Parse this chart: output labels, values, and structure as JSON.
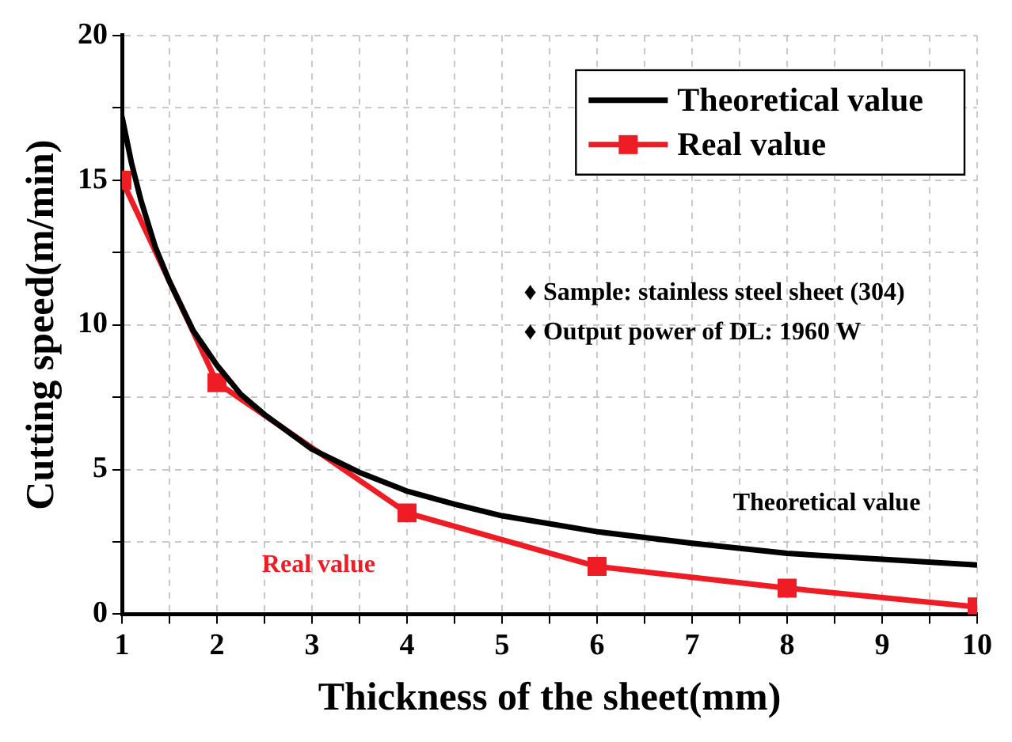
{
  "chart_data": {
    "type": "line",
    "xlabel": "Thickness of the sheet(mm)",
    "ylabel": "Cutting speed(m/min)",
    "xlim": [
      1,
      10
    ],
    "ylim": [
      0,
      20
    ],
    "xticks": [
      1,
      {
        "value": 1.5,
        "label": null
      },
      2,
      {
        "value": 2.5,
        "label": null
      },
      3,
      {
        "value": 3.5,
        "label": null
      },
      4,
      {
        "value": 4.5,
        "label": null
      },
      5,
      {
        "value": 5.5,
        "label": null
      },
      6,
      {
        "value": 6.5,
        "label": null
      },
      7,
      {
        "value": 7.5,
        "label": null
      },
      8,
      {
        "value": 8.5,
        "label": null
      },
      9,
      {
        "value": 9.5,
        "label": null
      },
      10
    ],
    "yticks": [
      0,
      {
        "value": 2.5,
        "label": null
      },
      5,
      {
        "value": 7.5,
        "label": null
      },
      10,
      {
        "value": 12.5,
        "label": null
      },
      15,
      {
        "value": 17.5,
        "label": null
      },
      20
    ],
    "grid": true,
    "legend": "top right",
    "series": [
      {
        "name": "Theoretical value",
        "color": "#000000",
        "marker": "none",
        "x": [
          1,
          1.1,
          1.2,
          1.35,
          1.5,
          1.75,
          2,
          2.25,
          2.5,
          3,
          3.5,
          4,
          4.5,
          5,
          6,
          7,
          8,
          9,
          10
        ],
        "values": [
          17.2,
          15.6,
          14.3,
          12.7,
          11.5,
          9.8,
          8.6,
          7.6,
          6.9,
          5.7,
          4.9,
          4.25,
          3.8,
          3.4,
          2.85,
          2.45,
          2.1,
          1.9,
          1.7
        ]
      },
      {
        "name": "Real value",
        "color": "#ee1c25",
        "marker": "square",
        "x": [
          1,
          2,
          4,
          6,
          8,
          10
        ],
        "values": [
          15,
          8,
          3.5,
          1.65,
          0.9,
          0.25
        ]
      }
    ],
    "annotations": [
      "♦ Sample: stainless steel sheet (304)",
      "♦ Output power of DL: 1960 W",
      "Theoretical value",
      "Real value"
    ]
  }
}
